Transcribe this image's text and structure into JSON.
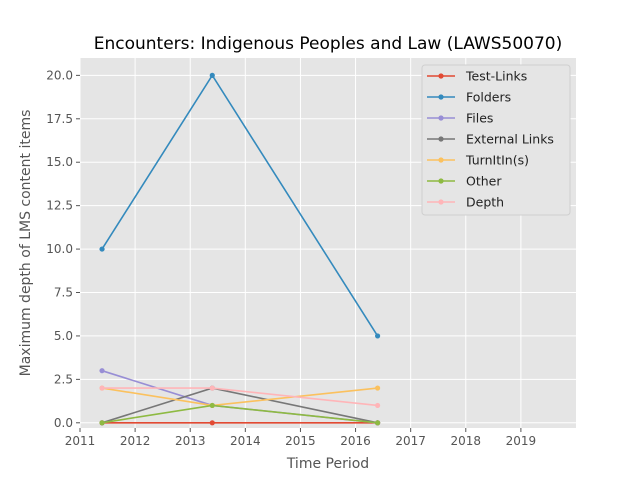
{
  "chart_data": {
    "type": "line",
    "title": "Encounters: Indigenous Peoples and Law (LAWS50070)",
    "xlabel": "Time Period",
    "ylabel": "Maximum depth of LMS content items",
    "xlim": [
      2011,
      2020
    ],
    "ylim": [
      -0.3,
      21.0
    ],
    "xticks": [
      2011,
      2012,
      2013,
      2014,
      2015,
      2016,
      2017,
      2018,
      2019
    ],
    "yticks": [
      0.0,
      2.5,
      5.0,
      7.5,
      10.0,
      12.5,
      15.0,
      17.5,
      20.0
    ],
    "xtick_labels": [
      "2011",
      "2012",
      "2013",
      "2014",
      "2015",
      "2016",
      "2017",
      "2018",
      "2019"
    ],
    "ytick_labels": [
      "0.0",
      "2.5",
      "5.0",
      "7.5",
      "10.0",
      "12.5",
      "15.0",
      "17.5",
      "20.0"
    ],
    "grid": true,
    "legend_position": "top-right",
    "x": [
      2011.4,
      2013.4,
      2016.4
    ],
    "series": [
      {
        "name": "Test-Links",
        "color": "#E24A33",
        "values": [
          0,
          0,
          0
        ]
      },
      {
        "name": "Folders",
        "color": "#348ABD",
        "values": [
          10,
          20,
          5
        ]
      },
      {
        "name": "Files",
        "color": "#988ED5",
        "values": [
          3,
          1,
          0
        ]
      },
      {
        "name": "External Links",
        "color": "#777777",
        "values": [
          0,
          2,
          0
        ]
      },
      {
        "name": "TurnItIn(s)",
        "color": "#FBC15E",
        "values": [
          2,
          1,
          2
        ]
      },
      {
        "name": "Other",
        "color": "#8EBA42",
        "values": [
          0,
          1,
          0
        ]
      },
      {
        "name": "Depth",
        "color": "#FFB5B8",
        "values": [
          2,
          2,
          1
        ]
      }
    ]
  }
}
